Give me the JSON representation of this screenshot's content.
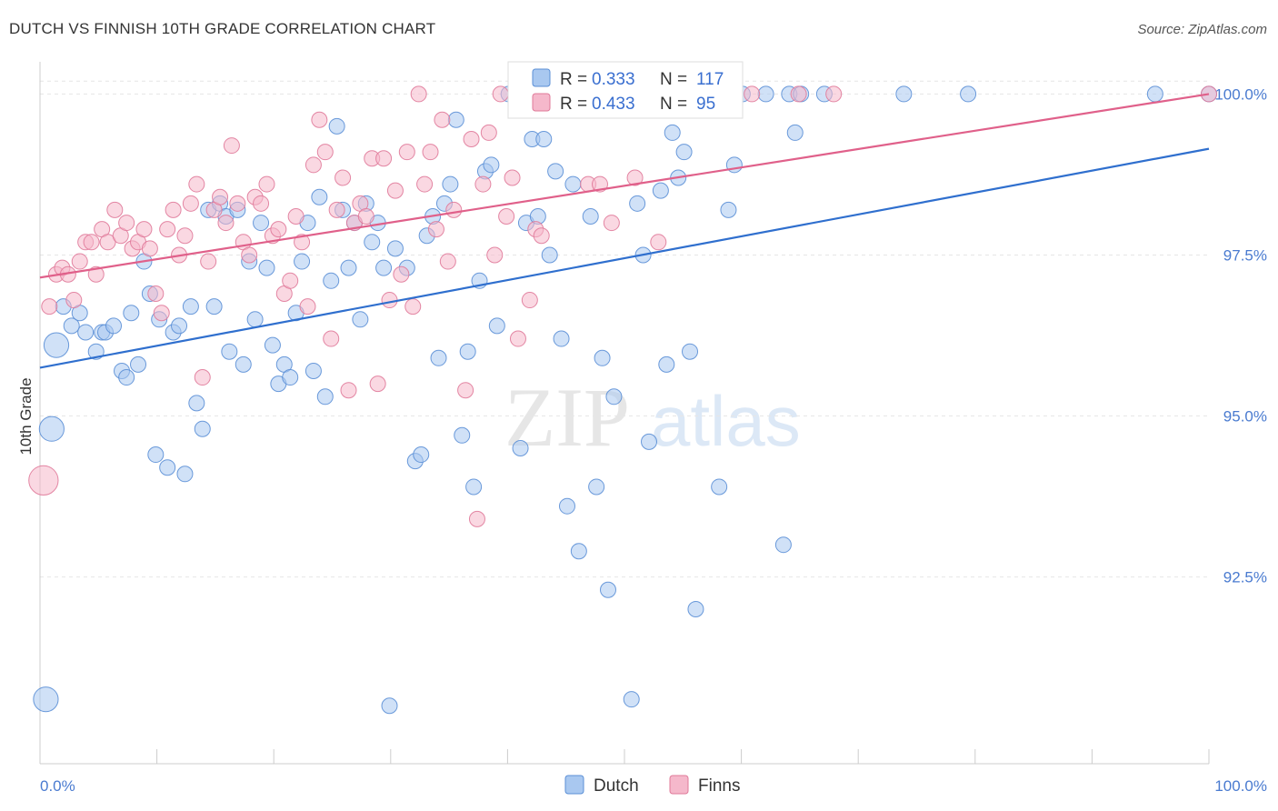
{
  "header": {
    "title": "DUTCH VS FINNISH 10TH GRADE CORRELATION CHART",
    "source": "Source: ZipAtlas.com"
  },
  "watermark": {
    "zip": "ZIP",
    "atlas": "atlas"
  },
  "colors": {
    "dutch_fill": "#a9c8f0",
    "dutch_stroke": "#5b8fd6",
    "dutch_line": "#2f6fce",
    "finns_fill": "#f5b8cb",
    "finns_stroke": "#e07a9a",
    "finns_line": "#e0608a",
    "tick_text": "#4a7bd0"
  },
  "stats": [
    {
      "r_label": "R =",
      "r": "0.333",
      "n_label": "N =",
      "n": "117"
    },
    {
      "r_label": "R =",
      "r": "0.433",
      "n_label": "N =",
      "n": "95"
    }
  ],
  "chart_data": {
    "type": "scatter",
    "title": "DUTCH VS FINNISH 10TH GRADE CORRELATION CHART",
    "xlabel": "",
    "ylabel": "10th Grade",
    "xlim": [
      0,
      100
    ],
    "ylim": [
      89.6,
      100.5
    ],
    "x_tick_labels": [
      "0.0%",
      "100.0%"
    ],
    "y_ticks": [
      {
        "value": 100.0,
        "label": "100.0%"
      },
      {
        "value": 97.5,
        "label": "97.5%"
      },
      {
        "value": 95.0,
        "label": "95.0%"
      },
      {
        "value": 92.5,
        "label": "92.5%"
      }
    ],
    "grid": true,
    "legend": "bottom-center",
    "series": [
      {
        "name": "Dutch",
        "trend": {
          "x": [
            0,
            100
          ],
          "y": [
            95.75,
            99.15
          ]
        },
        "points": [
          [
            1.4,
            96.1,
            1.6
          ],
          [
            1.0,
            94.8,
            1.6
          ],
          [
            0.5,
            90.6,
            1.6
          ],
          [
            2.0,
            96.7,
            1
          ],
          [
            2.7,
            96.4,
            1
          ],
          [
            3.4,
            96.6,
            1
          ],
          [
            3.9,
            96.3,
            1
          ],
          [
            4.8,
            96.0,
            1
          ],
          [
            5.3,
            96.3,
            1
          ],
          [
            5.6,
            96.3,
            1
          ],
          [
            6.3,
            96.4,
            1
          ],
          [
            7.0,
            95.7,
            1
          ],
          [
            7.4,
            95.6,
            1
          ],
          [
            7.8,
            96.6,
            1
          ],
          [
            8.4,
            95.8,
            1
          ],
          [
            8.9,
            97.4,
            1
          ],
          [
            9.4,
            96.9,
            1
          ],
          [
            9.9,
            94.4,
            1
          ],
          [
            10.2,
            96.5,
            1
          ],
          [
            10.9,
            94.2,
            1
          ],
          [
            11.4,
            96.3,
            1
          ],
          [
            11.9,
            96.4,
            1
          ],
          [
            12.4,
            94.1,
            1
          ],
          [
            12.9,
            96.7,
            1
          ],
          [
            13.4,
            95.2,
            1
          ],
          [
            13.9,
            94.8,
            1
          ],
          [
            14.4,
            98.2,
            1
          ],
          [
            14.9,
            96.7,
            1
          ],
          [
            15.4,
            98.3,
            1
          ],
          [
            15.9,
            98.1,
            1
          ],
          [
            16.2,
            96.0,
            1
          ],
          [
            16.9,
            98.2,
            1
          ],
          [
            17.4,
            95.8,
            1
          ],
          [
            17.9,
            97.4,
            1
          ],
          [
            18.4,
            96.5,
            1
          ],
          [
            18.9,
            98.0,
            1
          ],
          [
            19.4,
            97.3,
            1
          ],
          [
            19.9,
            96.1,
            1
          ],
          [
            20.4,
            95.5,
            1
          ],
          [
            20.9,
            95.8,
            1
          ],
          [
            21.4,
            95.6,
            1
          ],
          [
            21.9,
            96.6,
            1
          ],
          [
            22.4,
            97.4,
            1
          ],
          [
            22.9,
            98.0,
            1
          ],
          [
            23.4,
            95.7,
            1
          ],
          [
            23.9,
            98.4,
            1
          ],
          [
            24.4,
            95.3,
            1
          ],
          [
            24.9,
            97.1,
            1
          ],
          [
            25.4,
            99.5,
            1
          ],
          [
            25.9,
            98.2,
            1
          ],
          [
            26.4,
            97.3,
            1
          ],
          [
            26.9,
            98.0,
            1
          ],
          [
            27.4,
            96.5,
            1
          ],
          [
            27.9,
            98.3,
            1
          ],
          [
            28.4,
            97.7,
            1
          ],
          [
            28.9,
            98.0,
            1
          ],
          [
            29.4,
            97.3,
            1
          ],
          [
            29.9,
            90.5,
            1
          ],
          [
            30.4,
            97.6,
            1
          ],
          [
            31.4,
            97.3,
            1
          ],
          [
            32.1,
            94.3,
            1
          ],
          [
            32.6,
            94.4,
            1
          ],
          [
            33.1,
            97.8,
            1
          ],
          [
            33.6,
            98.1,
            1
          ],
          [
            34.1,
            95.9,
            1
          ],
          [
            34.6,
            98.3,
            1
          ],
          [
            35.1,
            98.6,
            1
          ],
          [
            35.6,
            99.6,
            1
          ],
          [
            36.1,
            94.7,
            1
          ],
          [
            36.6,
            96.0,
            1
          ],
          [
            37.1,
            93.9,
            1
          ],
          [
            37.6,
            97.1,
            1
          ],
          [
            38.1,
            98.8,
            1
          ],
          [
            38.6,
            98.9,
            1
          ],
          [
            39.1,
            96.4,
            1
          ],
          [
            40.1,
            100.0,
            1
          ],
          [
            41.1,
            94.5,
            1
          ],
          [
            41.6,
            98.0,
            1
          ],
          [
            42.1,
            99.3,
            1
          ],
          [
            42.6,
            98.1,
            1
          ],
          [
            43.1,
            99.3,
            1
          ],
          [
            43.6,
            97.5,
            1
          ],
          [
            44.1,
            98.8,
            1
          ],
          [
            44.6,
            96.2,
            1
          ],
          [
            45.1,
            93.6,
            1
          ],
          [
            45.6,
            98.6,
            1
          ],
          [
            46.1,
            92.9,
            1
          ],
          [
            46.6,
            100.0,
            1
          ],
          [
            47.1,
            98.1,
            1
          ],
          [
            47.6,
            93.9,
            1
          ],
          [
            48.1,
            95.9,
            1
          ],
          [
            48.6,
            92.3,
            1
          ],
          [
            49.1,
            95.3,
            1
          ],
          [
            50.1,
            100.0,
            1
          ],
          [
            50.6,
            90.6,
            1
          ],
          [
            51.1,
            98.3,
            1
          ],
          [
            51.6,
            97.5,
            1
          ],
          [
            52.1,
            94.6,
            1
          ],
          [
            52.6,
            100.0,
            1
          ],
          [
            53.1,
            98.5,
            1
          ],
          [
            53.6,
            95.8,
            1
          ],
          [
            54.1,
            99.4,
            1
          ],
          [
            54.6,
            98.7,
            1
          ],
          [
            55.1,
            99.1,
            1
          ],
          [
            55.6,
            96.0,
            1
          ],
          [
            56.1,
            92.0,
            1
          ],
          [
            58.1,
            93.9,
            1
          ],
          [
            58.6,
            100.0,
            1
          ],
          [
            58.9,
            98.2,
            1
          ],
          [
            59.4,
            98.9,
            1
          ],
          [
            60.1,
            100.0,
            1
          ],
          [
            62.1,
            100.0,
            1
          ],
          [
            63.6,
            93.0,
            1
          ],
          [
            64.1,
            100.0,
            1
          ],
          [
            64.6,
            99.4,
            1
          ],
          [
            65.1,
            100.0,
            1
          ],
          [
            67.1,
            100.0,
            1
          ],
          [
            73.9,
            100.0,
            1
          ],
          [
            79.4,
            100.0,
            1
          ],
          [
            95.4,
            100.0,
            1
          ],
          [
            100.0,
            100.0,
            1
          ]
        ]
      },
      {
        "name": "Finns",
        "trend": {
          "x": [
            0,
            100
          ],
          "y": [
            97.15,
            100.0
          ]
        },
        "points": [
          [
            0.3,
            94.0,
            1.9
          ],
          [
            0.8,
            96.7,
            1
          ],
          [
            1.4,
            97.2,
            1
          ],
          [
            1.9,
            97.3,
            1
          ],
          [
            2.4,
            97.2,
            1
          ],
          [
            2.9,
            96.8,
            1
          ],
          [
            3.4,
            97.4,
            1
          ],
          [
            3.9,
            97.7,
            1
          ],
          [
            4.4,
            97.7,
            1
          ],
          [
            4.8,
            97.2,
            1
          ],
          [
            5.3,
            97.9,
            1
          ],
          [
            5.8,
            97.7,
            1
          ],
          [
            6.4,
            98.2,
            1
          ],
          [
            6.9,
            97.8,
            1
          ],
          [
            7.4,
            98.0,
            1
          ],
          [
            7.9,
            97.6,
            1
          ],
          [
            8.4,
            97.7,
            1
          ],
          [
            8.9,
            97.9,
            1
          ],
          [
            9.4,
            97.6,
            1
          ],
          [
            9.9,
            96.9,
            1
          ],
          [
            10.4,
            96.6,
            1
          ],
          [
            10.9,
            97.9,
            1
          ],
          [
            11.4,
            98.2,
            1
          ],
          [
            11.9,
            97.5,
            1
          ],
          [
            12.4,
            97.8,
            1
          ],
          [
            12.9,
            98.3,
            1
          ],
          [
            13.4,
            98.6,
            1
          ],
          [
            13.9,
            95.6,
            1
          ],
          [
            14.4,
            97.4,
            1
          ],
          [
            14.9,
            98.2,
            1
          ],
          [
            15.4,
            98.4,
            1
          ],
          [
            15.9,
            98.0,
            1
          ],
          [
            16.4,
            99.2,
            1
          ],
          [
            16.9,
            98.3,
            1
          ],
          [
            17.4,
            97.7,
            1
          ],
          [
            17.9,
            97.5,
            1
          ],
          [
            18.4,
            98.4,
            1
          ],
          [
            18.9,
            98.3,
            1
          ],
          [
            19.4,
            98.6,
            1
          ],
          [
            19.9,
            97.8,
            1
          ],
          [
            20.4,
            97.9,
            1
          ],
          [
            20.9,
            96.9,
            1
          ],
          [
            21.4,
            97.1,
            1
          ],
          [
            21.9,
            98.1,
            1
          ],
          [
            22.4,
            97.7,
            1
          ],
          [
            22.9,
            96.7,
            1
          ],
          [
            23.4,
            98.9,
            1
          ],
          [
            23.9,
            99.6,
            1
          ],
          [
            24.4,
            99.1,
            1
          ],
          [
            24.9,
            96.2,
            1
          ],
          [
            25.4,
            98.2,
            1
          ],
          [
            25.9,
            98.7,
            1
          ],
          [
            26.4,
            95.4,
            1
          ],
          [
            26.9,
            98.0,
            1
          ],
          [
            27.4,
            98.3,
            1
          ],
          [
            27.9,
            98.1,
            1
          ],
          [
            28.4,
            99.0,
            1
          ],
          [
            28.9,
            95.5,
            1
          ],
          [
            29.4,
            99.0,
            1
          ],
          [
            29.9,
            96.8,
            1
          ],
          [
            30.4,
            98.5,
            1
          ],
          [
            30.9,
            97.2,
            1
          ],
          [
            31.4,
            99.1,
            1
          ],
          [
            31.9,
            96.7,
            1
          ],
          [
            32.4,
            100.0,
            1
          ],
          [
            32.9,
            98.6,
            1
          ],
          [
            33.4,
            99.1,
            1
          ],
          [
            33.9,
            97.9,
            1
          ],
          [
            34.4,
            99.6,
            1
          ],
          [
            34.9,
            97.4,
            1
          ],
          [
            35.4,
            98.2,
            1
          ],
          [
            36.4,
            95.4,
            1
          ],
          [
            36.9,
            99.3,
            1
          ],
          [
            37.4,
            93.4,
            1
          ],
          [
            37.9,
            98.6,
            1
          ],
          [
            38.4,
            99.4,
            1
          ],
          [
            38.9,
            97.5,
            1
          ],
          [
            39.4,
            100.0,
            1
          ],
          [
            39.9,
            98.1,
            1
          ],
          [
            40.4,
            98.7,
            1
          ],
          [
            40.9,
            96.2,
            1
          ],
          [
            41.9,
            96.8,
            1
          ],
          [
            42.4,
            97.9,
            1
          ],
          [
            42.9,
            97.8,
            1
          ],
          [
            43.9,
            100.0,
            1
          ],
          [
            46.9,
            98.6,
            1
          ],
          [
            47.9,
            98.6,
            1
          ],
          [
            48.9,
            98.0,
            1
          ],
          [
            50.9,
            98.7,
            1
          ],
          [
            52.9,
            97.7,
            1
          ],
          [
            53.9,
            100.0,
            1
          ],
          [
            55.9,
            100.0,
            1
          ],
          [
            60.9,
            100.0,
            1
          ],
          [
            64.9,
            100.0,
            1
          ],
          [
            67.9,
            100.0,
            1
          ],
          [
            100.0,
            100.0,
            1
          ]
        ]
      }
    ]
  }
}
